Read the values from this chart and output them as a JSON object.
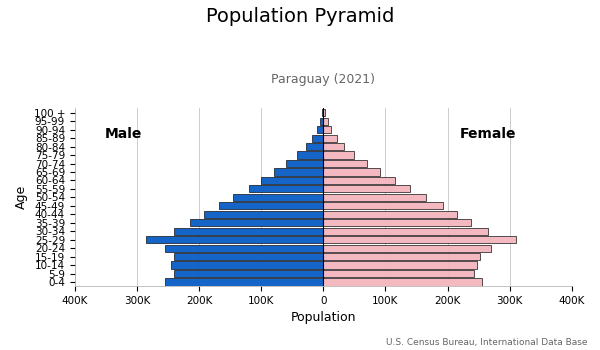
{
  "title": "Population Pyramid",
  "subtitle": "Paraguay (2021)",
  "source": "U.S. Census Bureau, International Data Base",
  "xlabel": "Population",
  "ylabel": "Age",
  "age_groups": [
    "0-4",
    "5-9",
    "10-14",
    "15-19",
    "20-24",
    "25-29",
    "30-34",
    "35-39",
    "40-44",
    "45-49",
    "50-54",
    "55-59",
    "60-64",
    "65-69",
    "70-74",
    "75-79",
    "80-84",
    "85-89",
    "90-94",
    "95-99",
    "100 +"
  ],
  "male": [
    255000,
    240000,
    245000,
    240000,
    255000,
    285000,
    240000,
    215000,
    192000,
    168000,
    145000,
    120000,
    100000,
    80000,
    60000,
    42000,
    28000,
    18000,
    10000,
    5000,
    2000
  ],
  "female": [
    255000,
    242000,
    248000,
    252000,
    270000,
    310000,
    265000,
    238000,
    215000,
    192000,
    165000,
    140000,
    115000,
    92000,
    70000,
    50000,
    34000,
    22000,
    13000,
    7000,
    3500
  ],
  "male_color": "#1565c8",
  "female_color": "#f4b8c1",
  "bar_edge_color": "#111111",
  "bar_linewidth": 0.5,
  "xlim": 400000,
  "xtick_values": [
    -400000,
    -300000,
    -200000,
    -100000,
    0,
    100000,
    200000,
    300000,
    400000
  ],
  "xtick_labels": [
    "400K",
    "300K",
    "200K",
    "100K",
    "0",
    "100K",
    "200K",
    "300K",
    "400K"
  ],
  "background_color": "#ffffff",
  "grid_color": "#cccccc",
  "title_fontsize": 14,
  "subtitle_fontsize": 9,
  "label_fontsize": 9,
  "tick_fontsize": 7.5,
  "source_fontsize": 6.5,
  "gender_label_fontsize": 10
}
